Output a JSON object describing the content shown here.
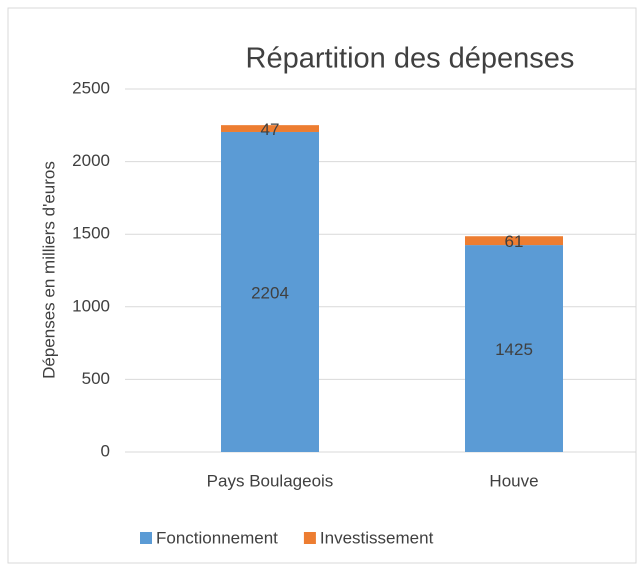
{
  "chart_data": {
    "type": "stacked_bar",
    "title": "Répartition des dépenses",
    "ylabel": "Dépenses en milliers d'euros",
    "categories": [
      "Pays Boulageois",
      "Houve"
    ],
    "series": [
      {
        "name": "Fonctionnement",
        "color": "#5b9bd5",
        "values": [
          2204,
          1425
        ]
      },
      {
        "name": "Investissement",
        "color": "#ed7d31",
        "values": [
          47,
          61
        ]
      }
    ],
    "ylim": [
      0,
      2500
    ],
    "yticks": [
      0,
      500,
      1000,
      1500,
      2000,
      2500
    ],
    "grid": true,
    "legend": "bottom"
  }
}
